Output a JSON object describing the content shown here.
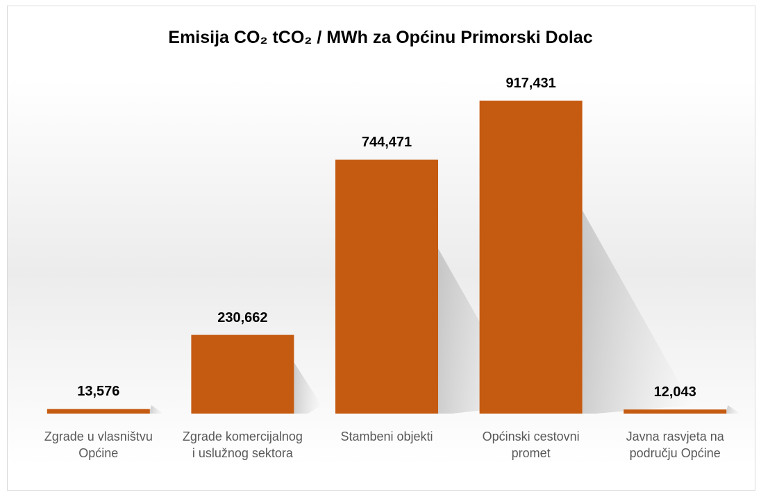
{
  "chart_data": {
    "type": "bar",
    "title": "Emisija CO₂  tCO₂ / MWh za Općinu Primorski Dolac",
    "categories": [
      "Zgrade u vlasništvu Općine",
      "Zgrade komercijalnog i uslužnog sektora",
      "Stambeni objekti",
      "Općinski cestovni promet",
      "Javna rasvjeta na području Općine"
    ],
    "values": [
      13.576,
      230.662,
      744.471,
      917.431,
      12.043
    ],
    "value_labels": [
      "13,576",
      "230,662",
      "744,471",
      "917,431",
      "12,043"
    ],
    "color": "#c55a11"
  }
}
